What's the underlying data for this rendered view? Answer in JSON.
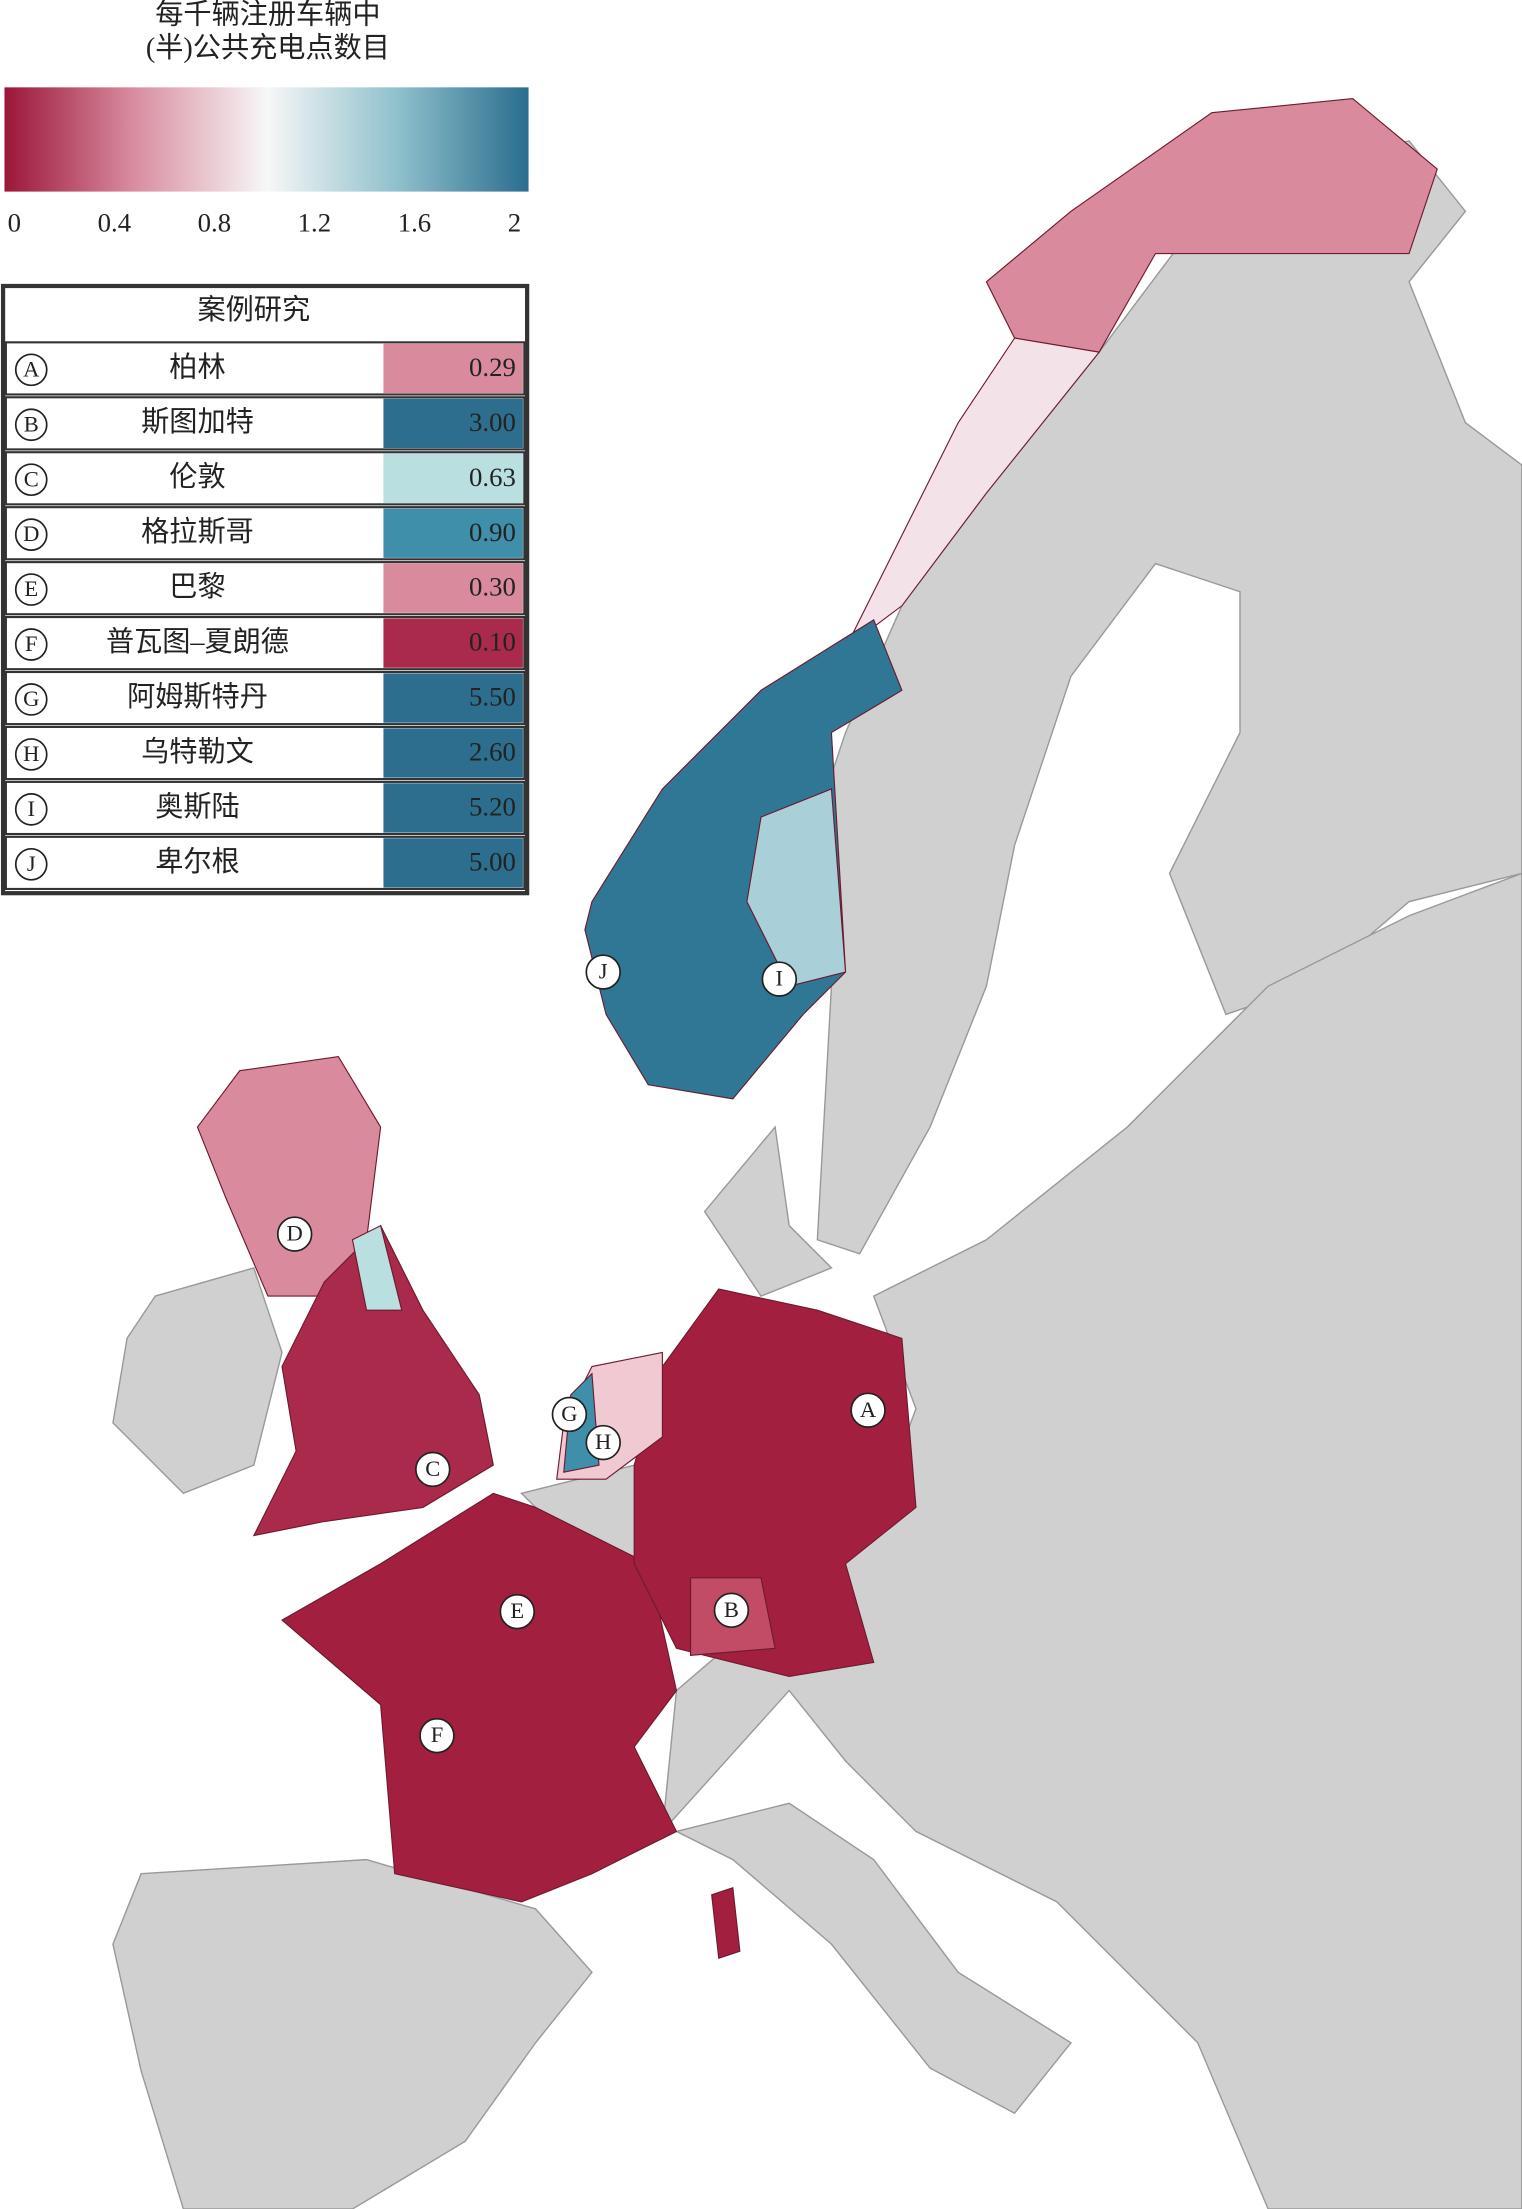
{
  "legend": {
    "title_lines": [
      "每千辆注册车辆中",
      "(半)公共充电点数目"
    ],
    "colorbar": {
      "lim": [
        0,
        2
      ],
      "ticks": [
        0,
        0.4,
        0.8,
        1.2,
        1.6,
        2
      ],
      "colors": [
        "#9b1638",
        "#d98ea1",
        "#f7f7f7",
        "#8fc0cc",
        "#2a6d8e"
      ]
    }
  },
  "table": {
    "header": "案例研究",
    "cases": [
      {
        "letter": "A",
        "name": "柏林",
        "value": "0.29",
        "color": "#d98a9d"
      },
      {
        "letter": "B",
        "name": "斯图加特",
        "value": "3.00",
        "color": "#2d6e8e"
      },
      {
        "letter": "C",
        "name": "伦敦",
        "value": "0.63",
        "color": "#b9dfe1"
      },
      {
        "letter": "D",
        "name": "格拉斯哥",
        "value": "0.90",
        "color": "#3f8fab"
      },
      {
        "letter": "E",
        "name": "巴黎",
        "value": "0.30",
        "color": "#d98a9d"
      },
      {
        "letter": "F",
        "name": "普瓦图–夏朗德",
        "value": "0.10",
        "color": "#a92a4a"
      },
      {
        "letter": "G",
        "name": "阿姆斯特丹",
        "value": "5.50",
        "color": "#2d6e8e"
      },
      {
        "letter": "H",
        "name": "乌特勒文",
        "value": "2.60",
        "color": "#2d6e8e"
      },
      {
        "letter": "I",
        "name": "奥斯陆",
        "value": "5.20",
        "color": "#2d6e8e"
      },
      {
        "letter": "J",
        "name": "卑尔根",
        "value": "5.00",
        "color": "#2d6e8e"
      }
    ]
  }
}
